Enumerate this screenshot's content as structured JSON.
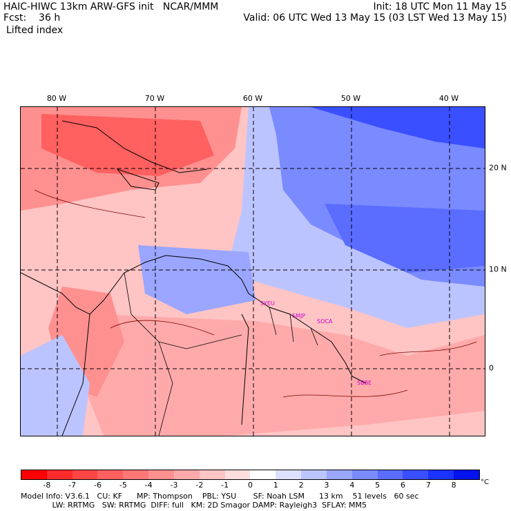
{
  "header": {
    "line1_left": "HAIC-HIWC 13km ARW-GFS init   NCAR/MMM",
    "line1_right": "Init: 18 UTC Mon 11 May 15",
    "line2_left": "Fcst:    36 h",
    "line2_right": "Valid: 06 UTC Wed 13 May 15 (03 LST Wed 13 May 15)",
    "line3": "Lifted index"
  },
  "axes": {
    "longitudes": [
      "80 W",
      "70 W",
      "60 W",
      "50 W",
      "40 W"
    ],
    "latitudes": [
      "20 N",
      "10 N",
      "0"
    ]
  },
  "stations": [
    "SYEU",
    "SMJP",
    "SOCA",
    "SBBE"
  ],
  "colorbar": {
    "ticks": [
      "-8",
      "-7",
      "-6",
      "-5",
      "-4",
      "-3",
      "-2",
      "-1",
      "0",
      "1",
      "2",
      "3",
      "4",
      "5",
      "6",
      "7",
      "8"
    ],
    "unit": "°C",
    "colors": [
      "#ff0000",
      "#ff2a2a",
      "#ff4545",
      "#ff6060",
      "#ff7777",
      "#ff9090",
      "#ffaaaa",
      "#ffc4c4",
      "#ffdede",
      "#ffffff",
      "#dde1ff",
      "#bcc4ff",
      "#9aa6ff",
      "#7a8aff",
      "#5a6dff",
      "#3a4fff",
      "#1a33ff",
      "#0012ee"
    ]
  },
  "model_info": {
    "line1": "Model Info: V3.6.1   CU: KF      MP: Thompson    PBL: YSU       SF: Noah LSM      13 km    51 levels   60 sec",
    "line2": "             LW: RRTMG   SW: RRTMG  DIFF: full   KM: 2D Smagor DAMP: Rayleigh3  SFLAY: MM5"
  }
}
